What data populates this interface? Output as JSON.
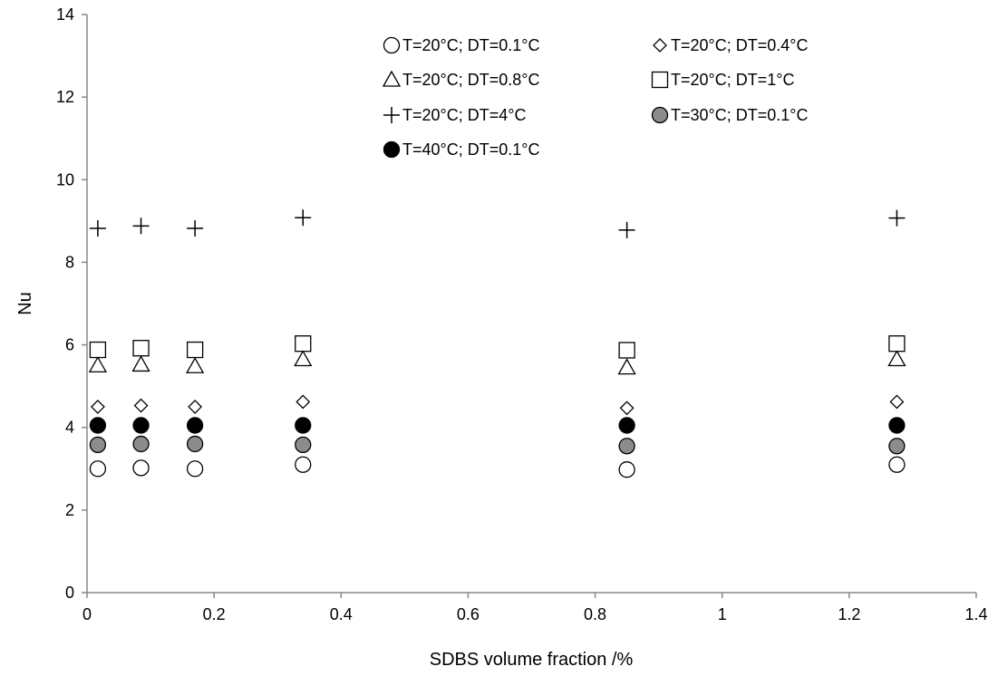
{
  "chart_data": {
    "type": "scatter",
    "title": "",
    "xlabel": "SDBS volume fraction /%",
    "ylabel": "Nu",
    "xlim": [
      0,
      1.4
    ],
    "ylim": [
      0,
      14
    ],
    "x_ticks": [
      "0",
      "0.2",
      "0.4",
      "0.6",
      "0.8",
      "1",
      "1.2",
      "1.4"
    ],
    "y_ticks": [
      "0",
      "2",
      "4",
      "6",
      "8",
      "10",
      "12",
      "14"
    ],
    "grid": false,
    "legend_position": "top-right",
    "x": [
      0.017,
      0.085,
      0.17,
      0.34,
      0.85,
      1.275
    ],
    "series": [
      {
        "name": "T=20°C; DT=0.1°C",
        "marker": "circle-open",
        "values": [
          3.0,
          3.02,
          3.0,
          3.1,
          2.98,
          3.1
        ]
      },
      {
        "name": "T=20°C; DT=0.4°C",
        "marker": "diamond-open",
        "values": [
          4.5,
          4.53,
          4.5,
          4.62,
          4.47,
          4.62
        ]
      },
      {
        "name": "T=20°C; DT=0.8°C",
        "marker": "triangle-open",
        "values": [
          5.5,
          5.52,
          5.48,
          5.65,
          5.45,
          5.65
        ]
      },
      {
        "name": "T=20°C; DT=1°C",
        "marker": "square-open",
        "values": [
          5.88,
          5.92,
          5.88,
          6.03,
          5.87,
          6.03
        ]
      },
      {
        "name": "T=20°C; DT=4°C",
        "marker": "plus",
        "values": [
          8.82,
          8.88,
          8.82,
          9.08,
          8.78,
          9.07
        ]
      },
      {
        "name": "T=30°C; DT=0.1°C",
        "marker": "circle-gray",
        "values": [
          3.58,
          3.6,
          3.6,
          3.58,
          3.55,
          3.55
        ]
      },
      {
        "name": "T=40°C; DT=0.1°C",
        "marker": "circle-black",
        "values": [
          4.05,
          4.05,
          4.05,
          4.05,
          4.05,
          4.05
        ]
      }
    ]
  }
}
